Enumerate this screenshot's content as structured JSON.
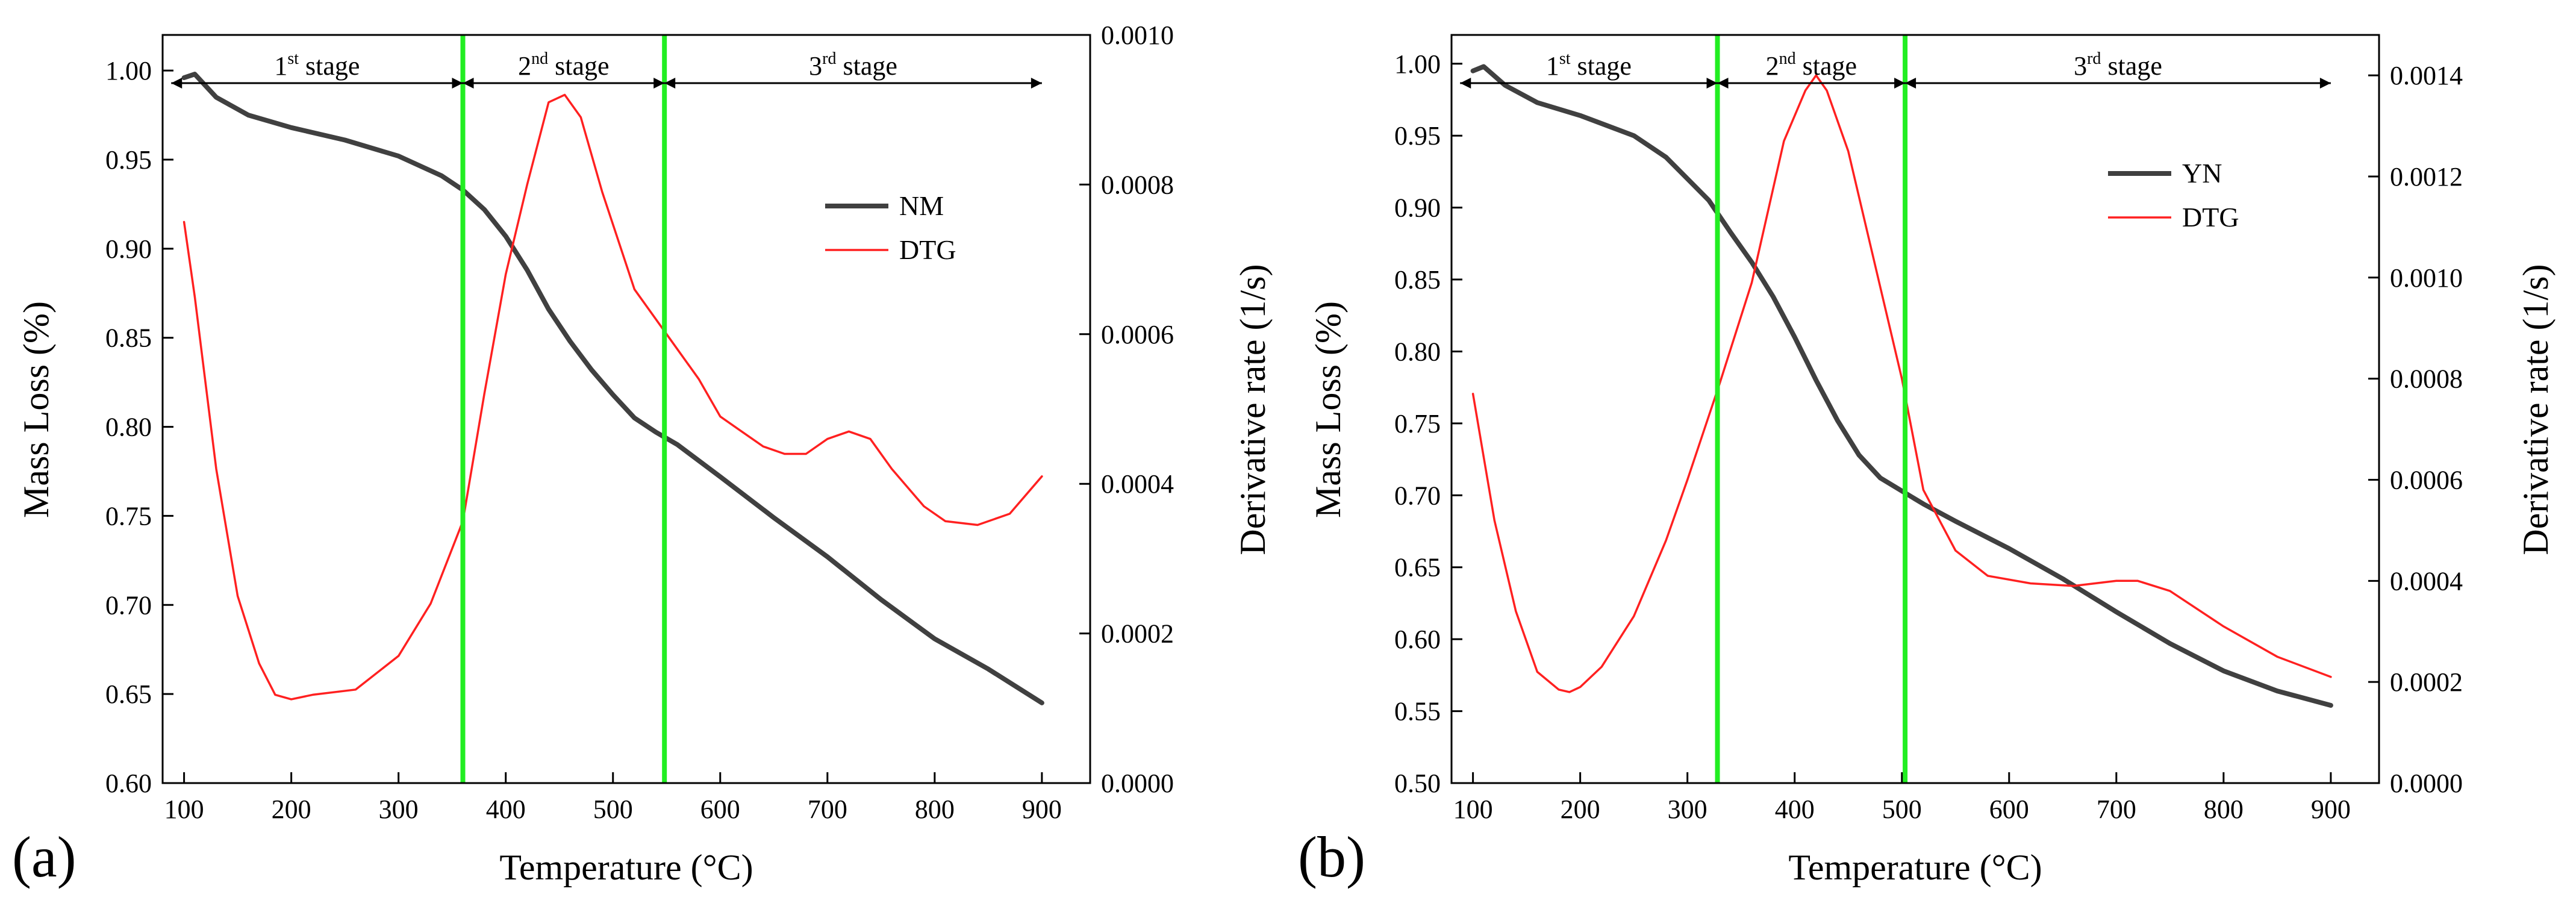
{
  "chart_data": [
    {
      "type": "line",
      "panel_label": "(a)",
      "xlabel": "Temperature (°C)",
      "ylabel_left": "Mass Loss (%)",
      "ylabel_right": "Derivative rate (1/s)",
      "xlim": [
        80,
        945
      ],
      "ylim_left": [
        0.6,
        1.02
      ],
      "ylim_right": [
        0.0,
        0.001
      ],
      "xticks": [
        100,
        200,
        300,
        400,
        500,
        600,
        700,
        800,
        900
      ],
      "yticks_left": [
        "0.60",
        "0.65",
        "0.70",
        "0.75",
        "0.80",
        "0.85",
        "0.90",
        "0.95",
        "1.00"
      ],
      "yticks_right": [
        "0.0000",
        "0.0002",
        "0.0004",
        "0.0006",
        "0.0008",
        "0.0010"
      ],
      "stage_bounds": [
        360,
        548
      ],
      "stages": [
        {
          "num": "1",
          "sup": "st",
          "word": " stage"
        },
        {
          "num": "2",
          "sup": "nd",
          "word": " stage"
        },
        {
          "num": "3",
          "sup": "rd",
          "word": " stage"
        }
      ],
      "legend_position": "right",
      "series": [
        {
          "name": "NM",
          "axis": "left",
          "color": "#404040",
          "x": [
            100,
            110,
            130,
            160,
            200,
            250,
            300,
            340,
            360,
            380,
            400,
            420,
            440,
            460,
            480,
            500,
            520,
            540,
            560,
            600,
            650,
            700,
            750,
            800,
            850,
            900
          ],
          "y": [
            0.996,
            0.998,
            0.985,
            0.975,
            0.968,
            0.961,
            0.952,
            0.941,
            0.933,
            0.922,
            0.907,
            0.888,
            0.866,
            0.848,
            0.832,
            0.818,
            0.805,
            0.797,
            0.79,
            0.772,
            0.749,
            0.727,
            0.703,
            0.681,
            0.664,
            0.645
          ]
        },
        {
          "name": "DTG",
          "axis": "right",
          "color": "#ff2020",
          "x": [
            100,
            110,
            130,
            150,
            170,
            185,
            200,
            220,
            260,
            300,
            330,
            360,
            380,
            400,
            420,
            440,
            455,
            470,
            490,
            520,
            550,
            580,
            600,
            620,
            640,
            660,
            680,
            700,
            720,
            740,
            760,
            790,
            810,
            840,
            870,
            900
          ],
          "y": [
            0.00075,
            0.00065,
            0.00042,
            0.00025,
            0.00016,
            0.000118,
            0.000112,
            0.000118,
            0.000125,
            0.00017,
            0.00024,
            0.00035,
            0.00052,
            0.00068,
            0.0008,
            0.00091,
            0.00092,
            0.00089,
            0.00079,
            0.00066,
            0.0006,
            0.00054,
            0.00049,
            0.00047,
            0.00045,
            0.00044,
            0.00044,
            0.00046,
            0.00047,
            0.00046,
            0.00042,
            0.00037,
            0.00035,
            0.000345,
            0.00036,
            0.00041
          ]
        }
      ]
    },
    {
      "type": "line",
      "panel_label": "(b)",
      "xlabel": "Temperature (°C)",
      "ylabel_left": "Mass Loss (%)",
      "ylabel_right": "Derivative rate (1/s)",
      "xlim": [
        80,
        945
      ],
      "ylim_left": [
        0.5,
        1.02
      ],
      "ylim_right": [
        0.0,
        0.00148
      ],
      "xticks": [
        100,
        200,
        300,
        400,
        500,
        600,
        700,
        800,
        900
      ],
      "yticks_left": [
        "0.50",
        "0.55",
        "0.60",
        "0.65",
        "0.70",
        "0.75",
        "0.80",
        "0.85",
        "0.90",
        "0.95",
        "1.00"
      ],
      "yticks_right": [
        "0.0000",
        "0.0002",
        "0.0004",
        "0.0006",
        "0.0008",
        "0.0010",
        "0.0012",
        "0.0014"
      ],
      "stage_bounds": [
        328,
        503
      ],
      "stages": [
        {
          "num": "1",
          "sup": "st",
          "word": " stage"
        },
        {
          "num": "2",
          "sup": "nd",
          "word": " stage"
        },
        {
          "num": "3",
          "sup": "rd",
          "word": " stage"
        }
      ],
      "legend_position": "right",
      "series": [
        {
          "name": "YN",
          "axis": "left",
          "color": "#404040",
          "x": [
            100,
            110,
            130,
            160,
            200,
            250,
            280,
            300,
            320,
            340,
            360,
            380,
            400,
            420,
            440,
            460,
            480,
            500,
            520,
            550,
            600,
            650,
            700,
            750,
            800,
            850,
            900
          ],
          "y": [
            0.995,
            0.998,
            0.985,
            0.973,
            0.964,
            0.95,
            0.935,
            0.92,
            0.905,
            0.883,
            0.862,
            0.838,
            0.81,
            0.78,
            0.752,
            0.728,
            0.712,
            0.703,
            0.694,
            0.682,
            0.663,
            0.642,
            0.619,
            0.597,
            0.578,
            0.564,
            0.554
          ]
        },
        {
          "name": "DTG",
          "axis": "right",
          "color": "#ff2020",
          "x": [
            100,
            120,
            140,
            160,
            180,
            190,
            200,
            220,
            250,
            280,
            300,
            330,
            360,
            390,
            410,
            420,
            430,
            450,
            480,
            500,
            520,
            550,
            580,
            620,
            660,
            700,
            720,
            750,
            800,
            850,
            900
          ],
          "y": [
            0.00077,
            0.00052,
            0.00034,
            0.00022,
            0.000185,
            0.00018,
            0.00019,
            0.00023,
            0.00033,
            0.00048,
            0.0006,
            0.00079,
            0.00099,
            0.00127,
            0.00137,
            0.0014,
            0.00137,
            0.00125,
            0.00098,
            0.0008,
            0.00058,
            0.00046,
            0.00041,
            0.000395,
            0.00039,
            0.0004,
            0.0004,
            0.00038,
            0.00031,
            0.00025,
            0.00021
          ]
        }
      ]
    }
  ]
}
